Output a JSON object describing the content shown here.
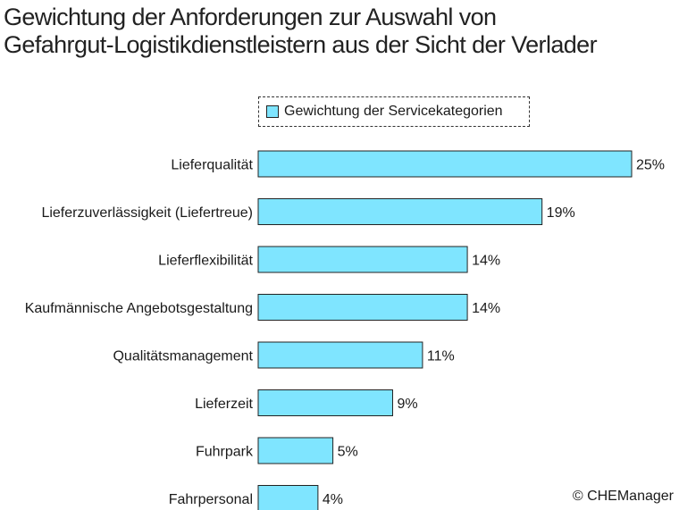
{
  "chart_data": {
    "type": "bar",
    "orientation": "horizontal",
    "title": [
      "Gewichtung der Anforderungen zur Auswahl von",
      "Gefahrgut-Logistikdienstleistern aus der Sicht der Verlader"
    ],
    "legend": {
      "label": "Gewichtung der Servicekategorien",
      "placement": "top"
    },
    "categories": [
      "Lieferqualität",
      "Lieferzuverlässigkeit (Liefertreue)",
      "Lieferflexibilität",
      "Kaufmännische Angebotsgestaltung",
      "Qualitätsmanagement",
      "Lieferzeit",
      "Fuhrpark",
      "Fahrpersonal"
    ],
    "values": [
      25,
      19,
      14,
      14,
      11,
      9,
      5,
      4
    ],
    "value_labels": [
      "25%",
      "19%",
      "14%",
      "14%",
      "11%",
      "9%",
      "5%",
      "4%"
    ],
    "unit": "%",
    "xlim": [
      0,
      25
    ],
    "grid": false,
    "bar_color": "#7fe5ff",
    "bar_stroke": "#222222",
    "source": "© CHEManager"
  }
}
